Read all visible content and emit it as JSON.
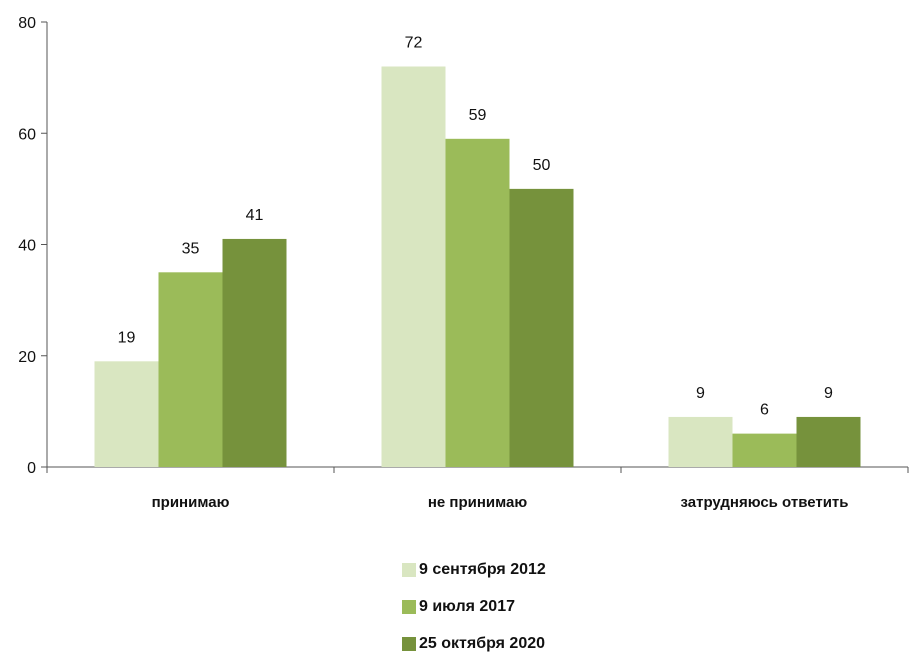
{
  "chart_data": {
    "type": "bar",
    "categories": [
      "принимаю",
      "не принимаю",
      "затрудняюсь ответить"
    ],
    "series": [
      {
        "name": "9 сентября 2012",
        "values": [
          19,
          72,
          9
        ],
        "labels": [
          "19",
          "72",
          "9"
        ],
        "color": "#d9e6c1"
      },
      {
        "name": "9 июля 2017",
        "values": [
          35,
          59,
          6
        ],
        "labels": [
          "35",
          "59",
          "6"
        ],
        "color": "#9bbb59"
      },
      {
        "name": "25 октября 2020",
        "values": [
          41,
          50,
          9
        ],
        "labels": [
          "41",
          "50",
          "9"
        ],
        "color": "#76923c"
      }
    ],
    "ylim": [
      0,
      80
    ],
    "yticks": [
      0,
      20,
      40,
      60,
      80
    ],
    "grid": false,
    "legend_position": "bottom"
  }
}
